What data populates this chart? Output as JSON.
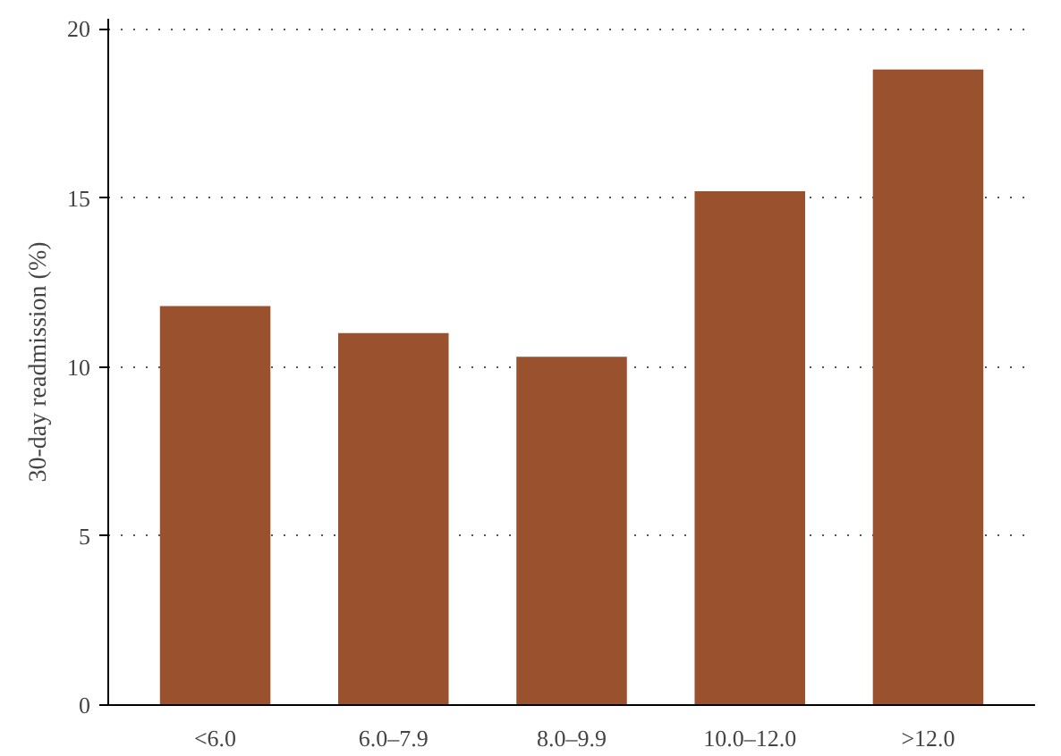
{
  "chart_data": {
    "type": "bar",
    "ylabel": "30-day readmission (%)",
    "categories": [
      "<6.0",
      "6.0–7.9",
      "8.0–9.9",
      "10.0–12.0",
      ">12.0"
    ],
    "values": [
      11.8,
      11.0,
      10.3,
      15.2,
      18.8
    ],
    "color": "#9a522e",
    "ylim": [
      0,
      20.3
    ],
    "yticks": [
      0,
      5,
      10,
      15,
      20
    ],
    "grid": "y"
  }
}
